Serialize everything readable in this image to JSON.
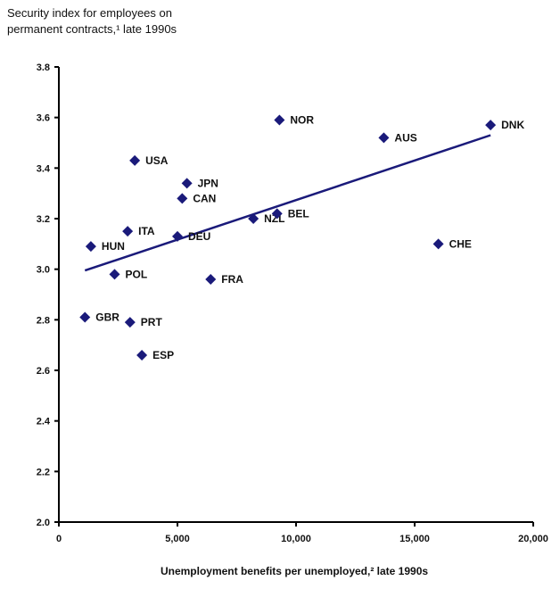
{
  "chart_data": {
    "type": "scatter",
    "title_lines": [
      "Security index for employees on",
      "permanent contracts,¹ late 1990s"
    ],
    "xlabel": "Unemployment benefits per unemployed,² late 1990s",
    "xlim": [
      0,
      20000
    ],
    "ylim": [
      2.0,
      3.8
    ],
    "x_ticks": [
      "0",
      "5,000",
      "10,000",
      "15,000",
      "20,000"
    ],
    "y_ticks": [
      "2.0",
      "2.2",
      "2.4",
      "2.6",
      "2.8",
      "3.0",
      "3.2",
      "3.4",
      "3.6",
      "3.8"
    ],
    "marker_color": "#1a1a7a",
    "trend_color": "#1a1a7a",
    "points": [
      {
        "label": "GBR",
        "x": 1100,
        "y": 2.81
      },
      {
        "label": "HUN",
        "x": 1350,
        "y": 3.09
      },
      {
        "label": "POL",
        "x": 2350,
        "y": 2.98
      },
      {
        "label": "ITA",
        "x": 2900,
        "y": 3.15
      },
      {
        "label": "PRT",
        "x": 3000,
        "y": 2.79
      },
      {
        "label": "USA",
        "x": 3200,
        "y": 3.43
      },
      {
        "label": "ESP",
        "x": 3500,
        "y": 2.66
      },
      {
        "label": "DEU",
        "x": 5000,
        "y": 3.13
      },
      {
        "label": "CAN",
        "x": 5200,
        "y": 3.28
      },
      {
        "label": "JPN",
        "x": 5400,
        "y": 3.34
      },
      {
        "label": "FRA",
        "x": 6400,
        "y": 2.96
      },
      {
        "label": "NZL",
        "x": 8200,
        "y": 3.2
      },
      {
        "label": "BEL",
        "x": 9200,
        "y": 3.22
      },
      {
        "label": "NOR",
        "x": 9300,
        "y": 3.59
      },
      {
        "label": "AUS",
        "x": 13700,
        "y": 3.52
      },
      {
        "label": "CHE",
        "x": 16000,
        "y": 3.1
      },
      {
        "label": "DNK",
        "x": 18200,
        "y": 3.57
      }
    ],
    "trendline": {
      "x": [
        1100,
        18200
      ],
      "y": [
        2.995,
        3.53
      ]
    }
  }
}
